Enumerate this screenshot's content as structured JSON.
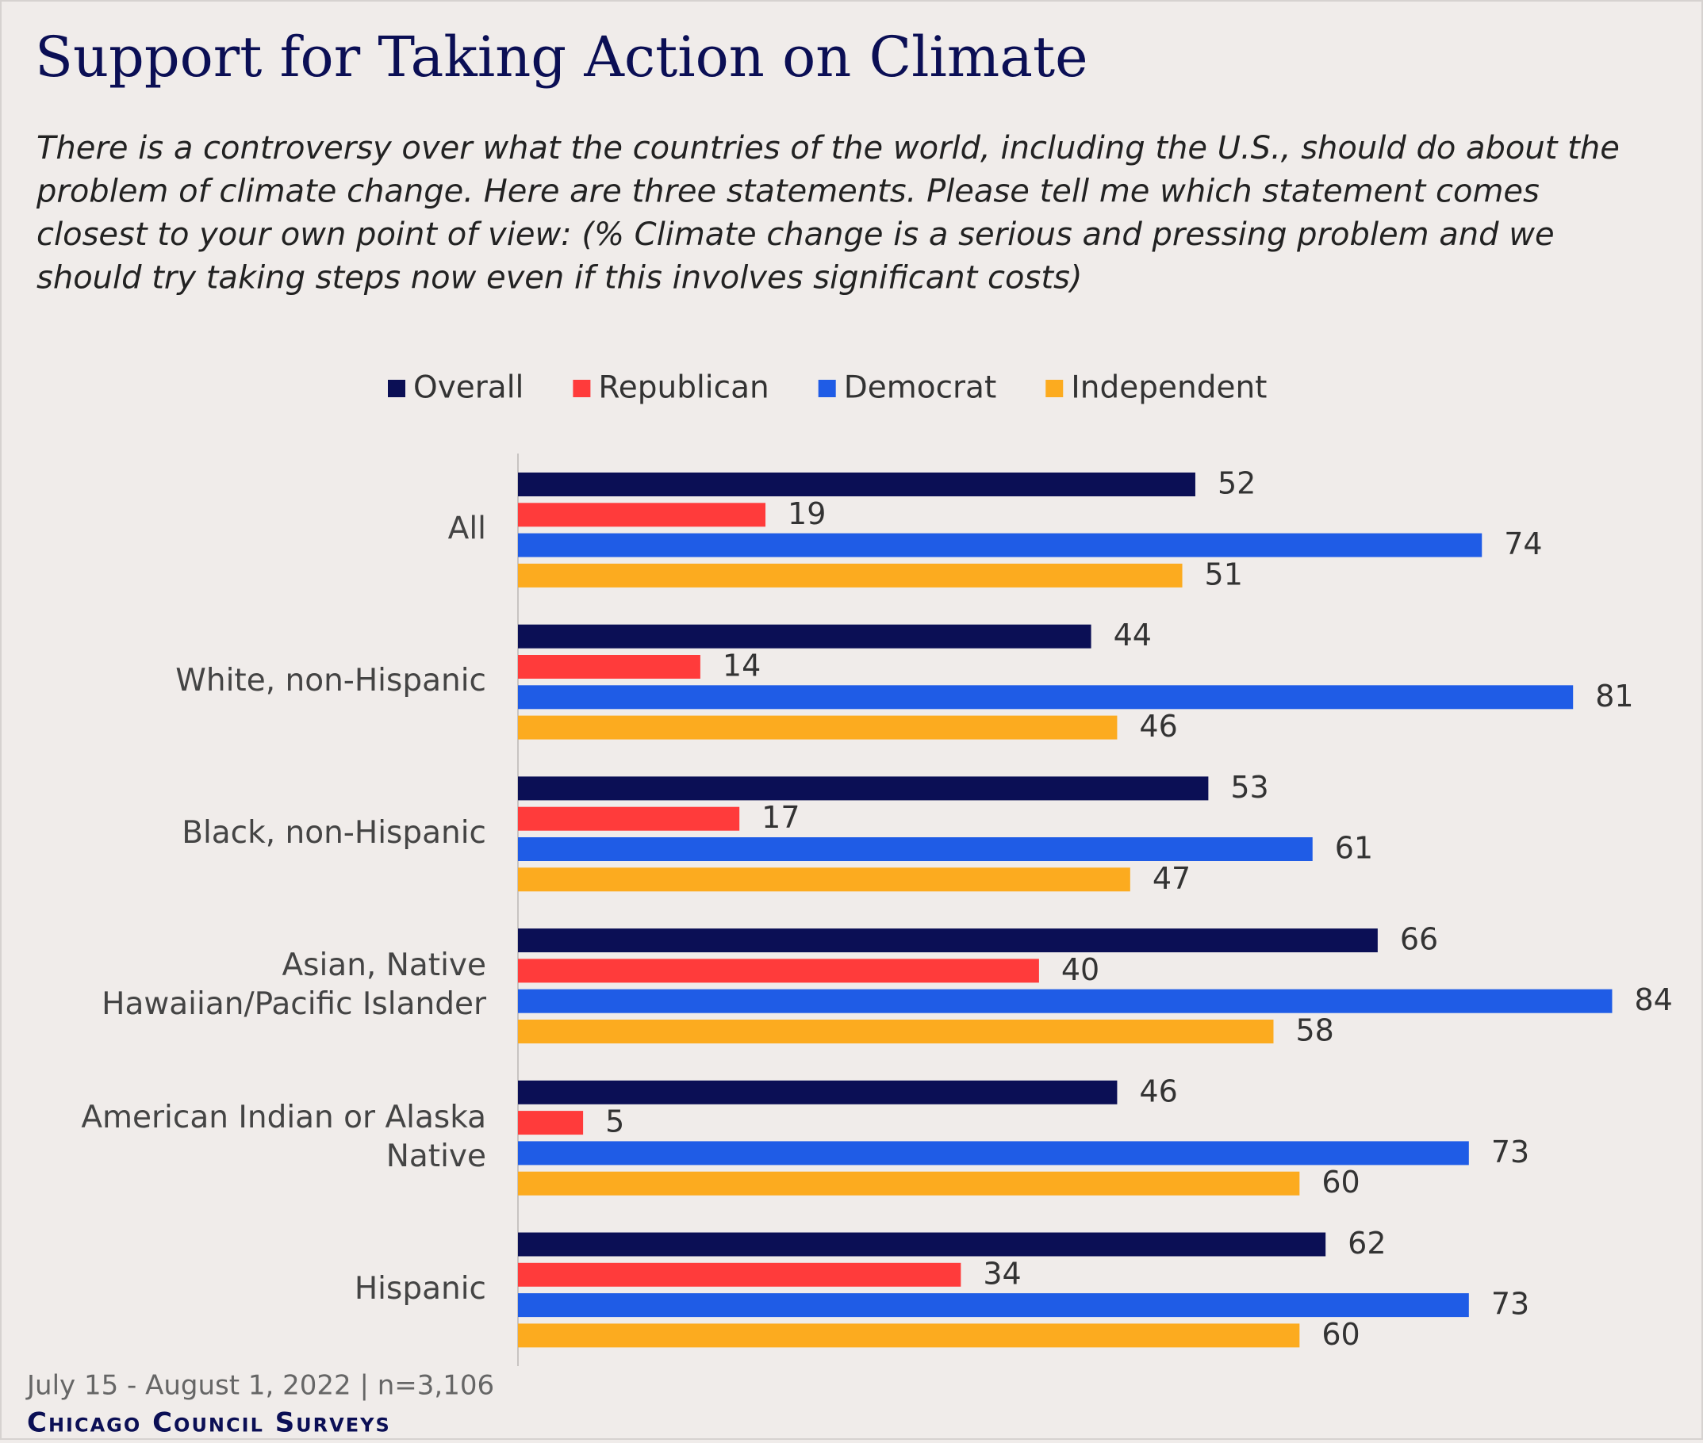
{
  "chart_data": {
    "type": "hbar",
    "title": "Support for Taking Action on Climate",
    "subtitle": "There is a controversy over what the countries of the world, including the U.S., should do about the problem of climate change. Here are three statements. Please tell me which statement comes closest to your own point of view: (% Climate change is a serious and pressing problem and we should try taking steps now even if this involves significant costs)",
    "categories": [
      "All",
      "White, non-Hispanic",
      "Black, non-Hispanic",
      "Asian, Native Hawaiian/Pacific Islander",
      "American Indian or Alaska Native",
      "Hispanic"
    ],
    "series": [
      {
        "name": "Overall",
        "color": "#0b0f55",
        "values": [
          52,
          44,
          53,
          66,
          46,
          62
        ]
      },
      {
        "name": "Republican",
        "color": "#ff3b3b",
        "values": [
          19,
          14,
          17,
          40,
          5,
          34
        ]
      },
      {
        "name": "Democrat",
        "color": "#1f5ce6",
        "values": [
          74,
          81,
          61,
          84,
          73,
          73
        ]
      },
      {
        "name": "Independent",
        "color": "#fcab1f",
        "values": [
          51,
          46,
          47,
          58,
          60,
          60
        ]
      }
    ],
    "xlim": [
      0,
      90
    ],
    "note": "July 15 - August 1, 2022 | n=3,106",
    "source": "Chicago Council Surveys"
  }
}
